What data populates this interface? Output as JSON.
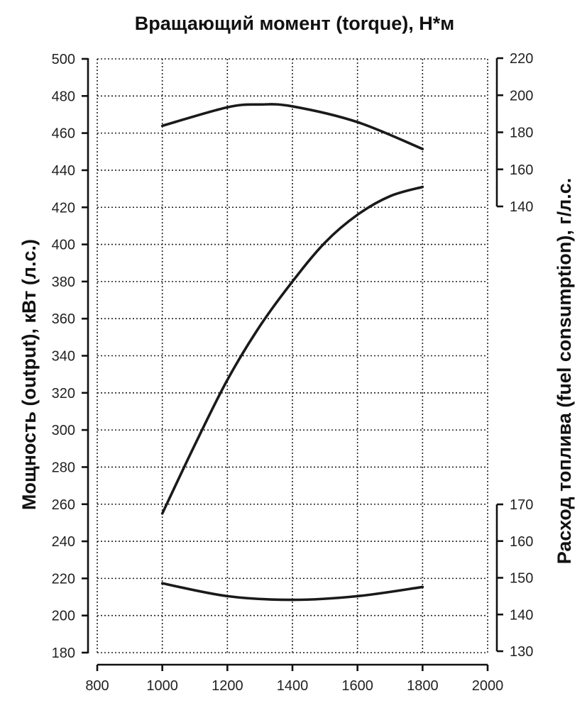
{
  "chart_data": {
    "type": "line",
    "title": "Вращающий момент (torque), Н*м",
    "left_label": "Мощность (output), кВт (л.с.)",
    "right_label": "Расход топлива (fuel consumption), г/л.с.",
    "x_ticks": [
      "800",
      "1000",
      "1200",
      "1400",
      "1600",
      "1800",
      "2000"
    ],
    "xlim": [
      800,
      2000
    ],
    "y_left": {
      "ticks": [
        "180",
        "200",
        "220",
        "240",
        "260",
        "280",
        "300",
        "320",
        "340",
        "360",
        "380",
        "400",
        "420",
        "440",
        "460",
        "480",
        "500"
      ],
      "lim": [
        180,
        500
      ]
    },
    "y_right_upper": {
      "ticks": [
        "140",
        "160",
        "180",
        "200",
        "220"
      ],
      "lim": [
        140,
        220
      ]
    },
    "y_right_lower": {
      "ticks": [
        "130",
        "140",
        "150",
        "160",
        "170"
      ],
      "lim": [
        130,
        170
      ]
    },
    "grid": true,
    "series": [
      {
        "axis": "right_upper",
        "x": [
          1000,
          1200,
          1300,
          1400,
          1600,
          1800
        ],
        "y": [
          183.5,
          193.5,
          195,
          194,
          185.5,
          171
        ]
      },
      {
        "axis": "left",
        "x": [
          1000,
          1100,
          1200,
          1300,
          1400,
          1500,
          1600,
          1700,
          1800
        ],
        "y": [
          255,
          292,
          327,
          356,
          380,
          401,
          416,
          426,
          431
        ]
      },
      {
        "axis": "right_lower",
        "x": [
          1000,
          1200,
          1400,
          1600,
          1800
        ],
        "y": [
          148.5,
          145,
          144,
          145,
          147.5
        ]
      }
    ]
  }
}
